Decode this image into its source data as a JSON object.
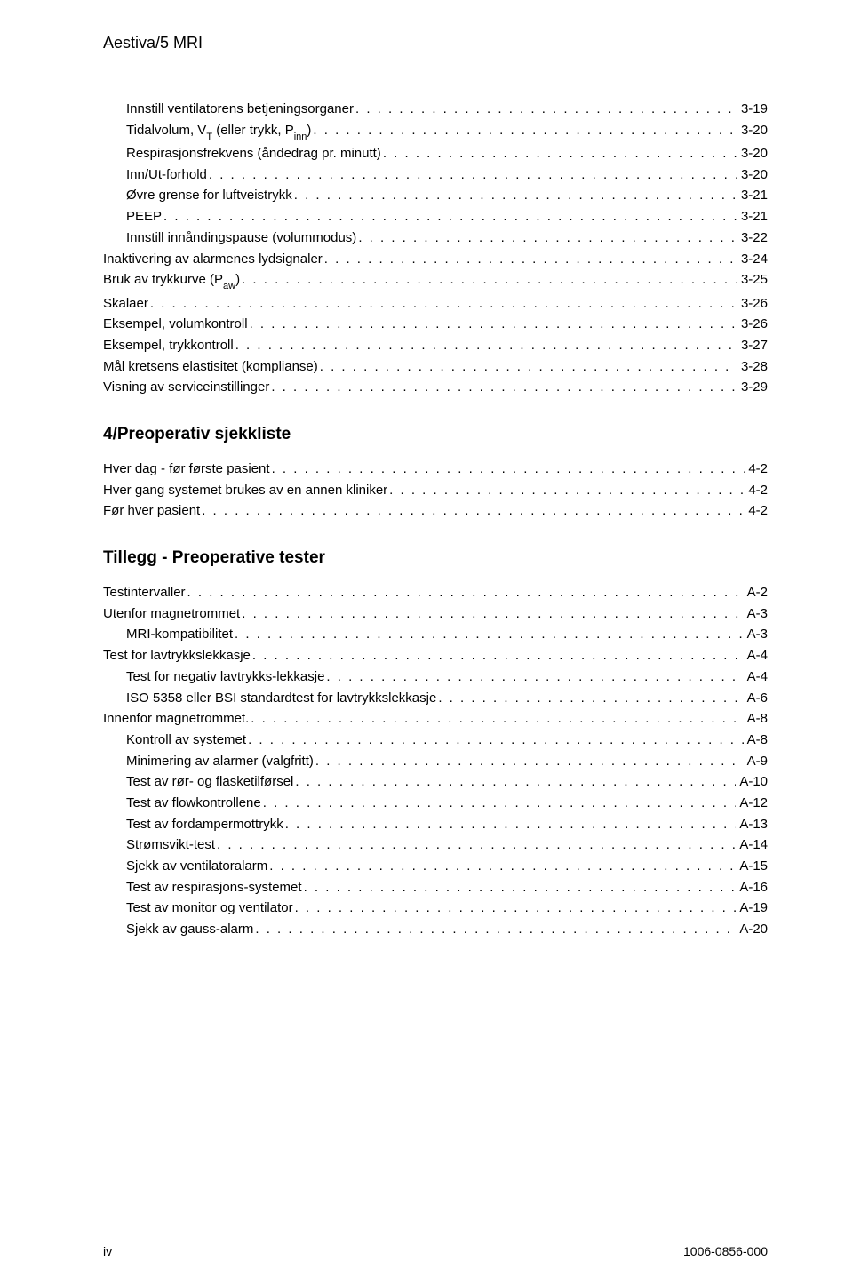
{
  "doc_title": "Aestiva/5 MRI",
  "footer": {
    "left": "iv",
    "right": "1006-0856-000"
  },
  "sections": [
    {
      "heading": null,
      "items": [
        {
          "level": 1,
          "label": "Innstill ventilatorens betjeningsorganer",
          "page": "3-19"
        },
        {
          "level": 1,
          "label_html": "Tidalvolum, V<span class='sub'>T</span> (eller trykk, P<span class='sub'>inn</span>)",
          "page": "3-20"
        },
        {
          "level": 1,
          "label": "Respirasjonsfrekvens (åndedrag pr. minutt)",
          "page": "3-20"
        },
        {
          "level": 1,
          "label": "Inn/Ut-forhold",
          "page": "3-20"
        },
        {
          "level": 1,
          "label": "Øvre grense for luftveistrykk",
          "page": "3-21"
        },
        {
          "level": 1,
          "label": "PEEP",
          "page": "3-21"
        },
        {
          "level": 1,
          "label": "Innstill innåndingspause (volummodus)",
          "page": "3-22"
        },
        {
          "level": 0,
          "label": "Inaktivering av alarmenes lydsignaler",
          "page": "3-24"
        },
        {
          "level": 0,
          "label_html": "Bruk av trykkurve (P<span class='sub'>aw</span>)",
          "page": "3-25"
        },
        {
          "level": 0,
          "label": "Skalaer",
          "page": "3-26"
        },
        {
          "level": 0,
          "label": "Eksempel, volumkontroll",
          "page": "3-26"
        },
        {
          "level": 0,
          "label": "Eksempel, trykkontroll",
          "page": "3-27"
        },
        {
          "level": 0,
          "label": "Mål kretsens elastisitet (komplianse)",
          "page": "3-28"
        },
        {
          "level": 0,
          "label": "Visning av serviceinstillinger",
          "page": "3-29"
        }
      ]
    },
    {
      "heading": "4/Preoperativ sjekkliste",
      "items": [
        {
          "level": 0,
          "label": "Hver dag - før første pasient",
          "page": "4-2"
        },
        {
          "level": 0,
          "label": "Hver gang systemet brukes av en annen kliniker",
          "page": "4-2"
        },
        {
          "level": 0,
          "label": "Før hver pasient",
          "page": "4-2"
        }
      ]
    },
    {
      "heading": "Tillegg - Preoperative tester",
      "items": [
        {
          "level": 0,
          "label": "Testintervaller",
          "page": "A-2"
        },
        {
          "level": 0,
          "label": "Utenfor magnetrommet",
          "page": "A-3"
        },
        {
          "level": 1,
          "label": "MRI-kompatibilitet",
          "page": "A-3"
        },
        {
          "level": 0,
          "label": "Test for lavtrykkslekkasje",
          "page": "A-4"
        },
        {
          "level": 1,
          "label": "Test for negativ lavtrykks-lekkasje",
          "page": "A-4"
        },
        {
          "level": 1,
          "label": "ISO 5358 eller BSI standardtest for lavtrykkslekkasje",
          "page": "A-6"
        },
        {
          "level": 0,
          "label": "Innenfor magnetrommet.",
          "page": "A-8"
        },
        {
          "level": 1,
          "label": "Kontroll av systemet",
          "page": "A-8"
        },
        {
          "level": 1,
          "label": "Minimering av alarmer (valgfritt)",
          "page": "A-9"
        },
        {
          "level": 1,
          "label": "Test av rør- og flasketilførsel",
          "page": "A-10"
        },
        {
          "level": 1,
          "label": "Test av flowkontrollene",
          "page": "A-12"
        },
        {
          "level": 1,
          "label": "Test av fordampermottrykk",
          "page": "A-13"
        },
        {
          "level": 1,
          "label": "Strømsvikt-test",
          "page": "A-14"
        },
        {
          "level": 1,
          "label": "Sjekk av ventilatoralarm",
          "page": "A-15"
        },
        {
          "level": 1,
          "label": "Test av respirasjons-systemet",
          "page": "A-16"
        },
        {
          "level": 1,
          "label": "Test av monitor og ventilator",
          "page": "A-19"
        },
        {
          "level": 1,
          "label": "Sjekk av gauss-alarm",
          "page": "A-20"
        }
      ]
    }
  ]
}
